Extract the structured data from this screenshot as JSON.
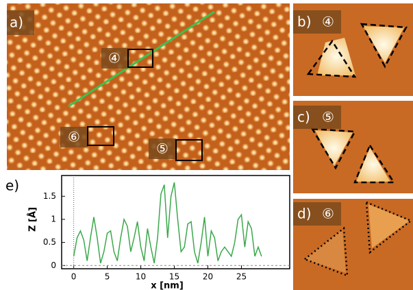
{
  "panels": {
    "a": {
      "label": "a)",
      "markers": [
        "④",
        "⑥",
        "⑤"
      ]
    },
    "b": {
      "label": "b)",
      "marker": "④"
    },
    "c": {
      "label": "c)",
      "marker": "⑤"
    },
    "d": {
      "label": "d)",
      "marker": "⑥"
    },
    "e": {
      "label": "e)"
    }
  },
  "chart_data": {
    "type": "line",
    "xlabel": "x [nm]",
    "ylabel": "Z [Å]",
    "color": "#3aa84a",
    "x": [
      0,
      0.5,
      1,
      1.5,
      2,
      2.5,
      3,
      3.5,
      4,
      4.5,
      5,
      5.5,
      6,
      6.5,
      7,
      7.5,
      8,
      8.5,
      9,
      9.5,
      10,
      10.5,
      11,
      11.5,
      12,
      12.5,
      13,
      13.5,
      14,
      14.5,
      15,
      15.5,
      16,
      16.5,
      17,
      17.5,
      18,
      18.5,
      19,
      19.5,
      20,
      20.5,
      21,
      21.5,
      22,
      22.5,
      23,
      23.5,
      24,
      24.5,
      25,
      25.5,
      26,
      26.5,
      27,
      27.5,
      28
    ],
    "values": [
      0.2,
      0.6,
      0.75,
      0.55,
      0.1,
      0.6,
      1.05,
      0.6,
      0.05,
      0.3,
      0.7,
      0.75,
      0.3,
      0.1,
      0.6,
      1.0,
      0.85,
      0.3,
      0.6,
      0.95,
      0.4,
      0.1,
      0.8,
      0.4,
      0.05,
      0.6,
      1.55,
      1.75,
      0.6,
      1.5,
      1.8,
      1.0,
      0.3,
      0.4,
      0.9,
      0.95,
      0.3,
      0.05,
      0.5,
      1.05,
      0.2,
      0.75,
      0.6,
      0.1,
      0.3,
      0.4,
      0.3,
      0.2,
      0.5,
      1.0,
      1.1,
      0.4,
      0.95,
      0.8,
      0.2,
      0.4,
      0.2
    ],
    "xlim": [
      -1.8,
      32.2
    ],
    "xticks": [
      0,
      5,
      10,
      15,
      20,
      25
    ],
    "ylim": [
      -0.07,
      1.95
    ],
    "yticks": [
      0,
      0.5,
      1,
      1.5
    ]
  }
}
